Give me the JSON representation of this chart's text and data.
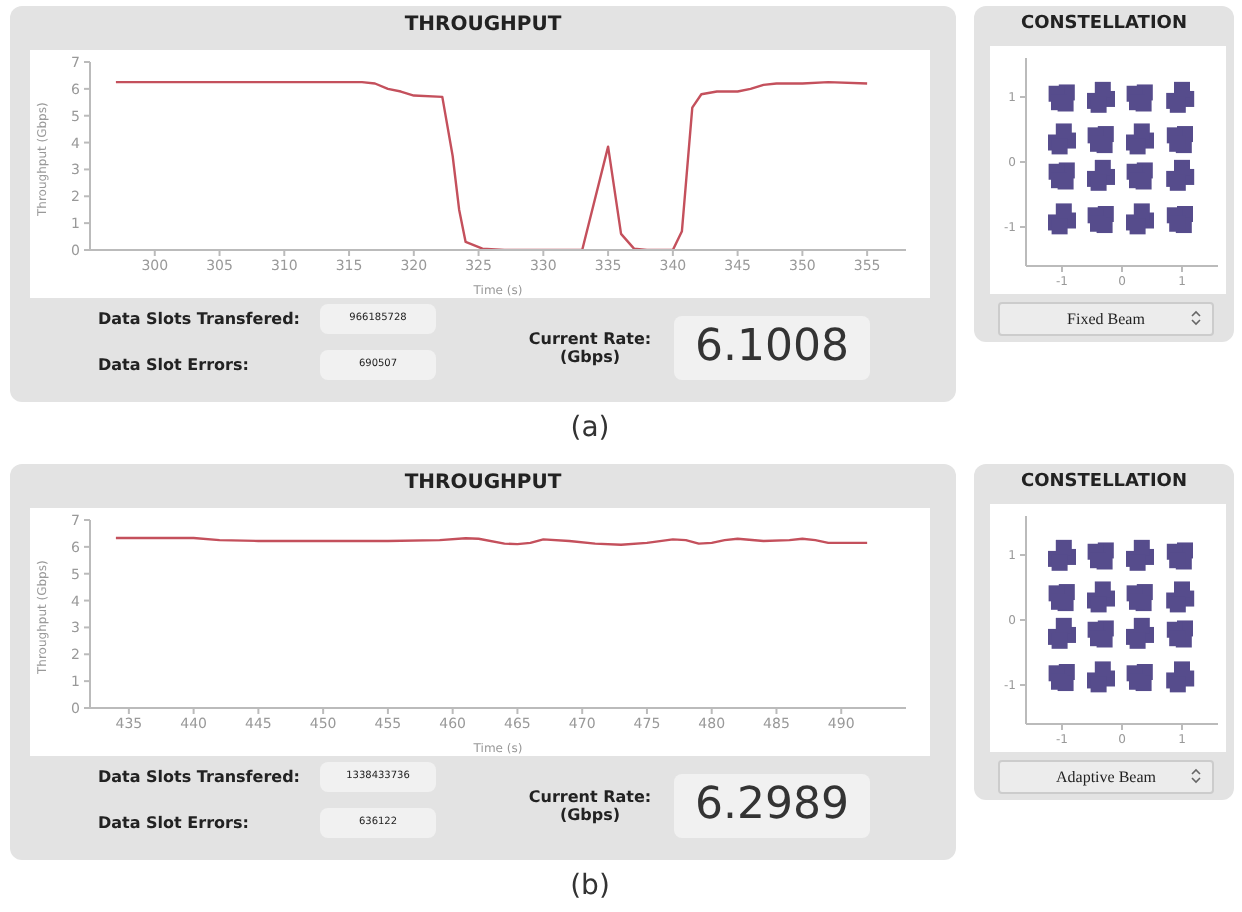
{
  "chart_data": [
    {
      "type": "line",
      "title": "THROUGHPUT",
      "xlabel": "Time (s)",
      "ylabel": "Throughput (Gbps)",
      "color": "#c4505c",
      "x": [
        297,
        300,
        305,
        310,
        316,
        317,
        318,
        319,
        320,
        322.2,
        323,
        323.5,
        324,
        325.3,
        327,
        330,
        333,
        335,
        336,
        337,
        338,
        340,
        340.7,
        341.5,
        342.2,
        343.4,
        345,
        346,
        347,
        348,
        350,
        352,
        355
      ],
      "values": [
        6.25,
        6.25,
        6.25,
        6.25,
        6.25,
        6.2,
        6.0,
        5.9,
        5.75,
        5.7,
        3.5,
        1.5,
        0.3,
        0.05,
        0,
        0,
        0,
        3.85,
        0.6,
        0.05,
        0,
        0,
        0.7,
        5.3,
        5.8,
        5.9,
        5.9,
        6.0,
        6.15,
        6.2,
        6.2,
        6.25,
        6.2
      ],
      "xlim": [
        295,
        358
      ],
      "xticks": [
        300,
        305,
        310,
        315,
        320,
        325,
        330,
        335,
        340,
        345,
        350,
        355
      ],
      "ylim": [
        0,
        7
      ],
      "yticks": [
        0,
        1,
        2,
        3,
        4,
        5,
        6,
        7
      ],
      "annotations": [
        "Data Slots Transfered:",
        "966185728",
        "Data Slot Errors:",
        "690507",
        "Current Rate:",
        "(Gbps)",
        "6.1008",
        "(a)"
      ]
    },
    {
      "type": "scatter",
      "title": "CONSTELLATION",
      "color": "#564c8c",
      "marker": "square",
      "x": [
        -0.92,
        -1.09,
        -0.94,
        -1.05,
        -0.25,
        -0.45,
        -0.32,
        -0.39,
        0.38,
        0.21,
        0.36,
        0.25,
        1.07,
        0.87,
        1,
        0.93,
        -0.9,
        -1.1,
        -0.97,
        -1.04,
        -0.27,
        -0.44,
        -0.29,
        -0.4,
        0.4,
        0.2,
        0.33,
        0.26,
        1.05,
        0.88,
        1.03,
        0.92,
        -0.92,
        -1.09,
        -0.94,
        -1.05,
        -0.25,
        -0.45,
        -0.32,
        -0.39,
        0.38,
        0.21,
        0.36,
        0.25,
        1.07,
        0.87,
        1,
        0.93,
        -0.9,
        -1.1,
        -0.97,
        -1.04,
        -0.27,
        -0.44,
        -0.29,
        -0.4,
        0.4,
        0.2,
        0.33,
        0.26,
        1.05,
        0.88,
        1.03,
        0.92
      ],
      "values": [
        1.07,
        1.05,
        0.9,
        0.92,
        0.97,
        0.94,
        1.11,
        0.88,
        1.07,
        1.05,
        0.9,
        0.92,
        0.97,
        0.94,
        1.11,
        0.88,
        0.33,
        0.3,
        0.47,
        0.24,
        0.43,
        0.41,
        0.26,
        0.28,
        0.33,
        0.3,
        0.47,
        0.24,
        0.43,
        0.41,
        0.26,
        0.28,
        -0.13,
        -0.15,
        -0.3,
        -0.28,
        -0.23,
        -0.26,
        -0.09,
        -0.32,
        -0.13,
        -0.15,
        -0.3,
        -0.28,
        -0.23,
        -0.26,
        -0.09,
        -0.32,
        -0.9,
        -0.93,
        -0.76,
        -0.99,
        -0.8,
        -0.82,
        -0.97,
        -0.95,
        -0.9,
        -0.93,
        -0.76,
        -0.99,
        -0.8,
        -0.82,
        -0.97,
        -0.95
      ],
      "xlim": [
        -1.6,
        1.6
      ],
      "xticks": [
        -1,
        0,
        1
      ],
      "ylim": [
        -1.6,
        1.6
      ],
      "yticks": [
        -1,
        0,
        1
      ],
      "annotations": [
        "Fixed Beam"
      ]
    },
    {
      "type": "line",
      "title": "THROUGHPUT",
      "xlabel": "Time (s)",
      "ylabel": "Throughput (Gbps)",
      "color": "#c4505c",
      "x": [
        434,
        440,
        442,
        445,
        455,
        459,
        461,
        462,
        464,
        465,
        466,
        467,
        469,
        471,
        473,
        475,
        477,
        478,
        479,
        480,
        481,
        482,
        484,
        486,
        487,
        488,
        489,
        492
      ],
      "values": [
        6.33,
        6.33,
        6.25,
        6.22,
        6.22,
        6.25,
        6.32,
        6.3,
        6.12,
        6.1,
        6.15,
        6.28,
        6.22,
        6.12,
        6.08,
        6.15,
        6.28,
        6.25,
        6.12,
        6.15,
        6.25,
        6.3,
        6.22,
        6.25,
        6.3,
        6.25,
        6.15,
        6.15
      ],
      "xlim": [
        432,
        495
      ],
      "xticks": [
        435,
        440,
        445,
        450,
        455,
        460,
        465,
        470,
        475,
        480,
        485,
        490
      ],
      "ylim": [
        0,
        7
      ],
      "yticks": [
        0,
        1,
        2,
        3,
        4,
        5,
        6,
        7
      ],
      "annotations": [
        "Data Slots Transfered:",
        "1338433736",
        "Data Slot Errors:",
        "636122",
        "Current Rate:",
        "(Gbps)",
        "6.2989",
        "(b)"
      ]
    },
    {
      "type": "scatter",
      "title": "CONSTELLATION",
      "color": "#564c8c",
      "marker": "square",
      "x": [
        -0.9,
        -1.1,
        -0.97,
        -1.04,
        -0.27,
        -0.44,
        -0.29,
        -0.4,
        0.4,
        0.2,
        0.33,
        0.26,
        1.05,
        0.88,
        1.03,
        0.92,
        -0.92,
        -1.09,
        -0.94,
        -1.05,
        -0.25,
        -0.45,
        -0.32,
        -0.39,
        0.38,
        0.21,
        0.36,
        0.25,
        1.07,
        0.87,
        1,
        0.93,
        -0.9,
        -1.1,
        -0.97,
        -1.04,
        -0.27,
        -0.44,
        -0.29,
        -0.4,
        0.4,
        0.2,
        0.33,
        0.26,
        1.05,
        0.88,
        1.03,
        0.92,
        -0.92,
        -1.09,
        -0.94,
        -1.05,
        -0.25,
        -0.45,
        -0.32,
        -0.39,
        0.38,
        0.21,
        0.36,
        0.25,
        1.07,
        0.87,
        1,
        0.93
      ],
      "values": [
        0.97,
        0.94,
        1.11,
        0.88,
        1.07,
        1.05,
        0.9,
        0.92,
        0.97,
        0.94,
        1.11,
        0.88,
        1.07,
        1.05,
        0.9,
        0.92,
        0.43,
        0.41,
        0.26,
        0.28,
        0.33,
        0.3,
        0.47,
        0.24,
        0.43,
        0.41,
        0.26,
        0.28,
        0.33,
        0.3,
        0.47,
        0.24,
        -0.23,
        -0.26,
        -0.09,
        -0.32,
        -0.13,
        -0.15,
        -0.3,
        -0.28,
        -0.23,
        -0.26,
        -0.09,
        -0.32,
        -0.13,
        -0.15,
        -0.3,
        -0.28,
        -0.8,
        -0.82,
        -0.97,
        -0.95,
        -0.9,
        -0.93,
        -0.76,
        -0.99,
        -0.8,
        -0.82,
        -0.97,
        -0.95,
        -0.9,
        -0.93,
        -0.76,
        -0.99
      ],
      "xlim": [
        -1.6,
        1.6
      ],
      "xticks": [
        -1,
        0,
        1
      ],
      "ylim": [
        -1.6,
        1.6
      ],
      "yticks": [
        -1,
        0,
        1
      ],
      "annotations": [
        "Adaptive Beam"
      ]
    }
  ]
}
